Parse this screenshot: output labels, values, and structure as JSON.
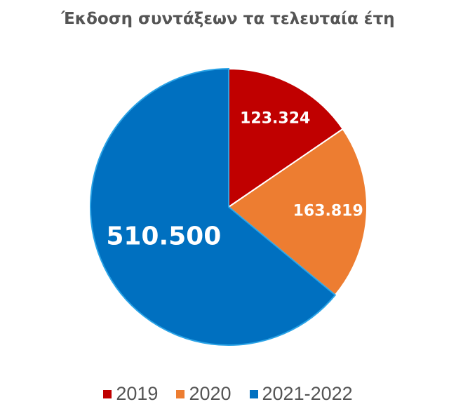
{
  "chart_data": {
    "type": "pie",
    "title": "Έκδοση συντάξεων τα τελευταία έτη",
    "categories": [
      "2019",
      "2020",
      "2021-2022"
    ],
    "values": [
      123324,
      163819,
      510500
    ],
    "data_labels": [
      "123.324",
      "163.819",
      "510.500"
    ],
    "colors": [
      "#C00000",
      "#ED7D31",
      "#0070C0"
    ],
    "start_angle": "top, clockwise",
    "legend": "bottom"
  }
}
